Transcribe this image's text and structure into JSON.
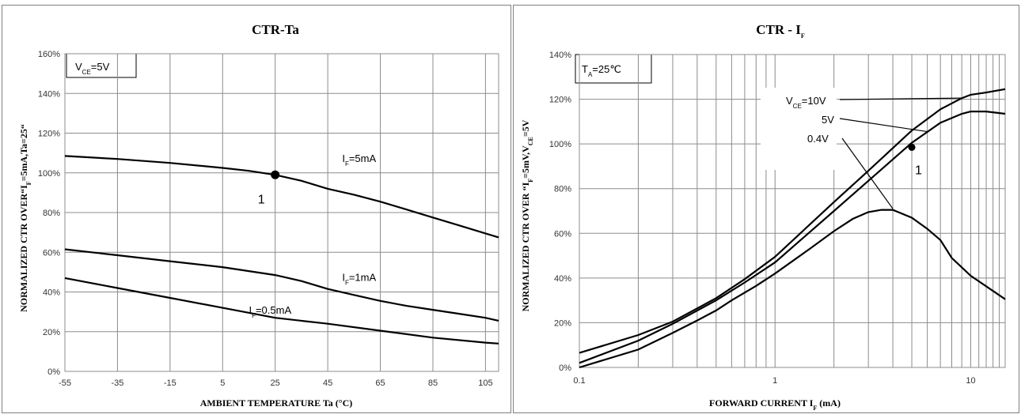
{
  "charts": [
    {
      "title": "CTR-Ta",
      "xlabel": "AMBIENT TEMPERATURE Ta (°C)",
      "ylabel": "NORMALIZED CTR OVER“IF=5mA,Ta=25“",
      "condition": "VCE=5V",
      "marker_label": "1"
    },
    {
      "title": "CTR - IF",
      "xlabel": "FORWARD CURRENT IF (mA)",
      "ylabel": "NORMALIZED CTR OVER “IF=5mV,VCE=5V",
      "condition": "TA=25℃",
      "marker_label": "1"
    }
  ],
  "chart_data": [
    {
      "type": "line",
      "title": "CTR-Ta",
      "xlabel": "AMBIENT TEMPERATURE Ta (°C)",
      "ylabel": "NORMALIZED CTR OVER“IF=5mA,Ta=25“",
      "xlim": [
        -55,
        110
      ],
      "ylim": [
        0,
        160
      ],
      "x_ticks": [
        "-55",
        "-35",
        "-15",
        "5",
        "25",
        "45",
        "65",
        "85",
        "105"
      ],
      "y_ticks": [
        "0%",
        "20%",
        "40%",
        "60%",
        "80%",
        "100%",
        "120%",
        "140%",
        "160%"
      ],
      "grid": true,
      "annotation": "VCE=5V",
      "marker": {
        "x": 25,
        "y": 99,
        "label": "1"
      },
      "series": [
        {
          "name": "IF=5mA",
          "x": [
            -55,
            -35,
            -15,
            5,
            15,
            25,
            35,
            45,
            55,
            65,
            75,
            85,
            95,
            105,
            110
          ],
          "y": [
            108.5,
            107,
            105,
            102.5,
            101,
            99,
            96,
            92,
            89,
            85.5,
            81.5,
            77.5,
            73.5,
            69.5,
            67.5
          ]
        },
        {
          "name": "IF=1mA",
          "x": [
            -55,
            -35,
            -15,
            5,
            25,
            35,
            45,
            55,
            65,
            75,
            85,
            95,
            105,
            110
          ],
          "y": [
            61.5,
            58.5,
            55.5,
            52.5,
            48.5,
            45.5,
            41.5,
            38.5,
            35.5,
            33,
            31,
            29,
            27,
            25.5
          ]
        },
        {
          "name": "IF=0.5mA",
          "x": [
            -55,
            -35,
            -15,
            5,
            25,
            45,
            65,
            85,
            105,
            110
          ],
          "y": [
            47,
            42,
            37,
            32,
            27,
            24,
            20.5,
            17,
            14.5,
            14
          ]
        }
      ]
    },
    {
      "type": "line",
      "title": "CTR - IF",
      "xlabel": "FORWARD CURRENT IF (mA)",
      "ylabel": "NORMALIZED CTR OVER “IF=5mV,VCE=5V",
      "x_scale": "log",
      "xlim": [
        0.1,
        15
      ],
      "ylim": [
        0,
        140
      ],
      "x_ticks": [
        "0.1",
        "1",
        "10"
      ],
      "y_ticks": [
        "0%",
        "20%",
        "40%",
        "60%",
        "80%",
        "100%",
        "120%",
        "140%"
      ],
      "grid": true,
      "annotation": "TA=25℃",
      "marker": {
        "x": 5,
        "y": 98.5,
        "label": "1"
      },
      "series": [
        {
          "name": "VCE=10V",
          "x": [
            0.1,
            0.2,
            0.3,
            0.5,
            0.7,
            1,
            2,
            3,
            5,
            7,
            9,
            10,
            12,
            15
          ],
          "y": [
            6.5,
            14.5,
            20.5,
            31,
            39.5,
            49.5,
            74,
            88,
            106,
            115.5,
            120.5,
            122,
            123,
            124.5
          ]
        },
        {
          "name": "5V",
          "x": [
            0.1,
            0.2,
            0.3,
            0.5,
            0.7,
            1,
            2,
            3,
            5,
            7,
            9,
            10,
            12,
            15
          ],
          "y": [
            2,
            12,
            19.5,
            30,
            38,
            47,
            70,
            83.5,
            100.5,
            109.5,
            113.5,
            114.5,
            114.5,
            113.5
          ]
        },
        {
          "name": "0.4V",
          "x": [
            0.1,
            0.2,
            0.3,
            0.4,
            0.5,
            0.6,
            0.8,
            1,
            1.5,
            2,
            2.5,
            3,
            3.5,
            4,
            5,
            6,
            7,
            8,
            10,
            15
          ],
          "y": [
            0,
            8,
            15.5,
            21,
            25.5,
            30,
            36.5,
            42,
            53,
            61,
            66.5,
            69.5,
            70.5,
            70.5,
            67,
            62,
            57,
            49,
            41,
            30.5
          ]
        }
      ]
    }
  ]
}
